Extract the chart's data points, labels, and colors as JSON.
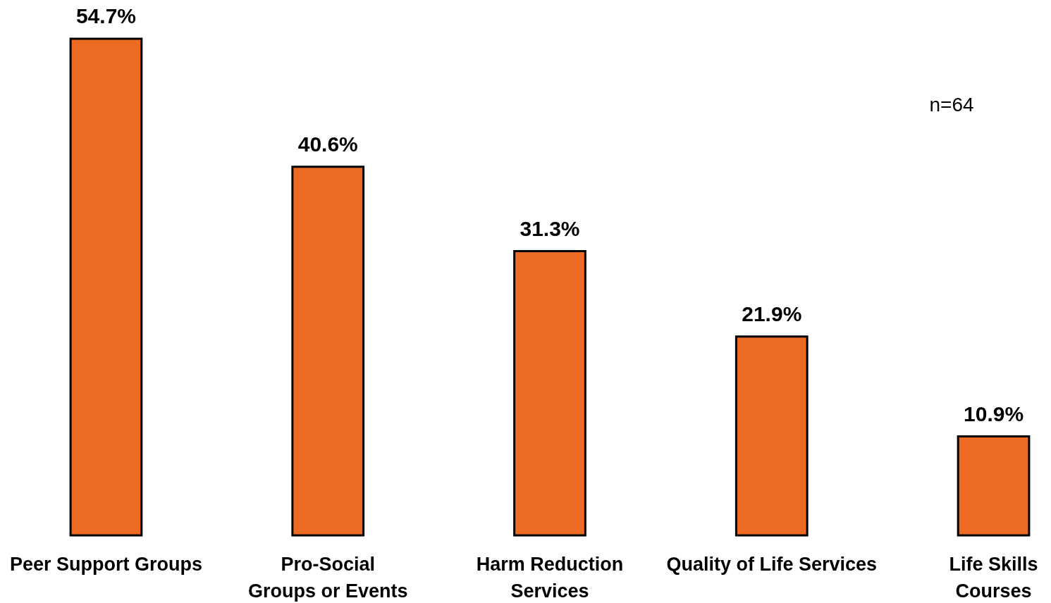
{
  "chart_data": {
    "type": "bar",
    "categories": [
      "Peer Support Groups",
      "Pro-Social\nGroups or Events",
      "Harm Reduction\nServices",
      "Quality of Life Services",
      "Life Skills\nCourses"
    ],
    "values": [
      54.7,
      40.6,
      31.3,
      21.9,
      10.9
    ],
    "value_labels": [
      "54.7%",
      "40.6%",
      "31.3%",
      "21.9%",
      "10.9%"
    ],
    "color": "#ec6a22",
    "annotations": [
      "n=64"
    ],
    "grid": false
  }
}
